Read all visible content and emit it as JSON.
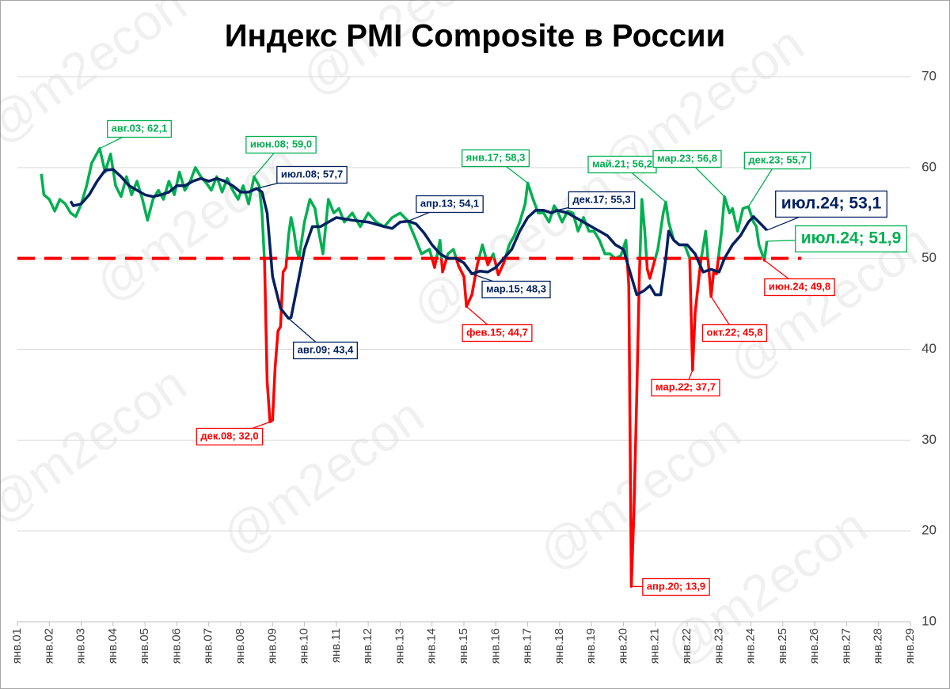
{
  "chart_data": {
    "type": "line",
    "title": "Индекс PMI Composite в России",
    "watermark": "@m2econ",
    "xlim": [
      2001,
      2029
    ],
    "xticks": [
      {
        "value": 2001,
        "label": "янв.01"
      },
      {
        "value": 2002,
        "label": "янв.02"
      },
      {
        "value": 2003,
        "label": "янв.03"
      },
      {
        "value": 2004,
        "label": "янв.04"
      },
      {
        "value": 2005,
        "label": "янв.05"
      },
      {
        "value": 2006,
        "label": "янв.06"
      },
      {
        "value": 2007,
        "label": "янв.07"
      },
      {
        "value": 2008,
        "label": "янв.08"
      },
      {
        "value": 2009,
        "label": "янв.09"
      },
      {
        "value": 2010,
        "label": "янв.10"
      },
      {
        "value": 2011,
        "label": "янв.11"
      },
      {
        "value": 2012,
        "label": "янв.12"
      },
      {
        "value": 2013,
        "label": "янв.13"
      },
      {
        "value": 2014,
        "label": "янв.14"
      },
      {
        "value": 2015,
        "label": "янв.15"
      },
      {
        "value": 2016,
        "label": "янв.16"
      },
      {
        "value": 2017,
        "label": "янв.17"
      },
      {
        "value": 2018,
        "label": "янв.18"
      },
      {
        "value": 2019,
        "label": "янв.19"
      },
      {
        "value": 2020,
        "label": "янв.20"
      },
      {
        "value": 2021,
        "label": "янв.21"
      },
      {
        "value": 2022,
        "label": "янв.22"
      },
      {
        "value": 2023,
        "label": "янв.23"
      },
      {
        "value": 2024,
        "label": "янв.24"
      },
      {
        "value": 2025,
        "label": "янв.25"
      },
      {
        "value": 2026,
        "label": "янв.26"
      },
      {
        "value": 2027,
        "label": "янв.27"
      },
      {
        "value": 2028,
        "label": "янв.28"
      },
      {
        "value": 2029,
        "label": "янв.29"
      }
    ],
    "ylim": [
      10,
      70
    ],
    "yticks": [
      10,
      20,
      30,
      40,
      50,
      60,
      70
    ],
    "y_axis_side": "right",
    "grid": true,
    "reference_line": {
      "value": 50,
      "x": [
        2001,
        2025.58
      ],
      "color": "#ff0000",
      "dashed": true
    },
    "series": [
      {
        "color": "#00b050",
        "below_reference_color": "#ff0000",
        "x": [
          2001.75,
          2001.83,
          2002.0,
          2002.17,
          2002.33,
          2002.5,
          2002.67,
          2002.83,
          2003.0,
          2003.17,
          2003.33,
          2003.58,
          2003.75,
          2003.92,
          2004.08,
          2004.25,
          2004.42,
          2004.58,
          2004.75,
          2004.92,
          2005.08,
          2005.25,
          2005.42,
          2005.58,
          2005.75,
          2005.92,
          2006.08,
          2006.25,
          2006.42,
          2006.58,
          2006.75,
          2006.92,
          2007.08,
          2007.25,
          2007.42,
          2007.58,
          2007.75,
          2007.92,
          2008.08,
          2008.25,
          2008.42,
          2008.58,
          2008.67,
          2008.75,
          2008.83,
          2008.92,
          2009.0,
          2009.08,
          2009.17,
          2009.25,
          2009.33,
          2009.42,
          2009.5,
          2009.58,
          2009.67,
          2009.75,
          2009.83,
          2010.0,
          2010.17,
          2010.33,
          2010.42,
          2010.58,
          2010.75,
          2010.92,
          2011.08,
          2011.25,
          2011.5,
          2011.75,
          2012.0,
          2012.25,
          2012.5,
          2012.75,
          2013.0,
          2013.25,
          2013.5,
          2013.67,
          2013.92,
          2014.08,
          2014.25,
          2014.33,
          2014.5,
          2014.67,
          2014.83,
          2015.0,
          2015.08,
          2015.25,
          2015.42,
          2015.58,
          2015.75,
          2015.92,
          2016.08,
          2016.25,
          2016.42,
          2016.58,
          2016.75,
          2016.92,
          2017.0,
          2017.17,
          2017.33,
          2017.5,
          2017.67,
          2017.83,
          2017.92,
          2018.08,
          2018.25,
          2018.42,
          2018.58,
          2018.75,
          2018.92,
          2019.08,
          2019.25,
          2019.42,
          2019.58,
          2019.75,
          2019.92,
          2020.08,
          2020.17,
          2020.25,
          2020.33,
          2020.42,
          2020.5,
          2020.58,
          2020.67,
          2020.75,
          2020.83,
          2020.92,
          2021.08,
          2021.25,
          2021.33,
          2021.42,
          2021.58,
          2021.75,
          2021.92,
          2022.08,
          2022.17,
          2022.25,
          2022.42,
          2022.58,
          2022.75,
          2022.83,
          2022.92,
          2023.08,
          2023.17,
          2023.33,
          2023.42,
          2023.58,
          2023.75,
          2023.92,
          2024.08,
          2024.17,
          2024.25,
          2024.42,
          2024.5
        ],
        "values": [
          59.3,
          57,
          56.5,
          55.2,
          56.5,
          56,
          55,
          54.6,
          56,
          58,
          60.5,
          62.1,
          59.5,
          61.5,
          58,
          56.8,
          59,
          57,
          58.5,
          56.5,
          54.2,
          56.5,
          57.5,
          56.5,
          58.5,
          57,
          59.5,
          57.5,
          58.5,
          60,
          59,
          58.3,
          57.5,
          59,
          57.3,
          58.8,
          57.5,
          56.5,
          58,
          56,
          59,
          58,
          55,
          49.5,
          36.5,
          32,
          32.2,
          38,
          42,
          42.5,
          48.5,
          49,
          52.5,
          54.5,
          53,
          51,
          50,
          54,
          56.5,
          55.5,
          53.5,
          50.5,
          56.5,
          55,
          55.5,
          54,
          55,
          53.5,
          55,
          54,
          53.5,
          54.5,
          55,
          54.1,
          52,
          50.5,
          51,
          49,
          52,
          48.5,
          50.5,
          51,
          49.2,
          48,
          44.7,
          46,
          49.3,
          51.5,
          49.3,
          50.5,
          48.2,
          49.5,
          51.5,
          52.5,
          54,
          56,
          58.3,
          56.5,
          55,
          55,
          54,
          55.8,
          55.3,
          54,
          55.2,
          55,
          53,
          54.5,
          53,
          53,
          52,
          50.5,
          50.5,
          50,
          50.3,
          52,
          47,
          13.9,
          22,
          35,
          48,
          56.5,
          53,
          48.8,
          47.8,
          49,
          51,
          55,
          56.2,
          54,
          52,
          51.5,
          51.5,
          50,
          37.7,
          44,
          49.5,
          53,
          45.8,
          48.5,
          48.3,
          53,
          56.8,
          55,
          55.5,
          53,
          55.5,
          55.7,
          54,
          53.5,
          51.5,
          49.8,
          51.9
        ]
      },
      {
        "color": "#002060",
        "x": [
          2002.67,
          2002.75,
          2003.0,
          2003.25,
          2003.5,
          2003.75,
          2004.0,
          2004.25,
          2004.5,
          2004.75,
          2005.0,
          2005.25,
          2005.5,
          2005.75,
          2006.0,
          2006.25,
          2006.5,
          2006.75,
          2007.0,
          2007.25,
          2007.5,
          2007.75,
          2008.0,
          2008.25,
          2008.5,
          2008.67,
          2008.83,
          2009.0,
          2009.25,
          2009.5,
          2009.58,
          2009.75,
          2010.0,
          2010.25,
          2010.5,
          2010.75,
          2011.0,
          2011.5,
          2012.0,
          2012.5,
          2012.75,
          2013.0,
          2013.25,
          2013.5,
          2013.75,
          2014.0,
          2014.25,
          2014.5,
          2014.75,
          2015.0,
          2015.25,
          2015.5,
          2015.75,
          2016.0,
          2016.25,
          2016.5,
          2016.75,
          2017.0,
          2017.25,
          2017.5,
          2017.75,
          2017.92,
          2018.25,
          2018.5,
          2018.75,
          2019.0,
          2019.25,
          2019.5,
          2019.75,
          2020.0,
          2020.25,
          2020.42,
          2020.67,
          2020.83,
          2021.0,
          2021.17,
          2021.33,
          2021.42,
          2021.58,
          2021.75,
          2022.0,
          2022.25,
          2022.5,
          2022.75,
          2023.0,
          2023.17,
          2023.42,
          2023.67,
          2023.92,
          2024.08,
          2024.25,
          2024.5
        ],
        "values": [
          56.3,
          55.8,
          56,
          57,
          58.5,
          59.7,
          59.8,
          59,
          58,
          57.5,
          57,
          56.8,
          57,
          57.3,
          58,
          58,
          58.5,
          58.8,
          58.5,
          58.8,
          58.5,
          58,
          57.3,
          57.3,
          57.7,
          57.3,
          55,
          48,
          44.5,
          43.4,
          43.5,
          46.5,
          51,
          53.5,
          53.5,
          54,
          54.5,
          54.2,
          54,
          53.5,
          53.3,
          54,
          54.1,
          53.8,
          52.8,
          51.5,
          50.5,
          50,
          50,
          49.5,
          48.3,
          48.6,
          48.5,
          49,
          50,
          51,
          53,
          54.5,
          55.3,
          55.3,
          55,
          55.3,
          55,
          54.5,
          54,
          53.5,
          53,
          52.5,
          51.5,
          51,
          48,
          46,
          46.5,
          47,
          46,
          46,
          50,
          53,
          52,
          51.5,
          51.5,
          50.5,
          48.5,
          48.8,
          48.5,
          50,
          51.5,
          52.5,
          54,
          54.6,
          54,
          53.1
        ]
      }
    ],
    "annotations": [
      {
        "text": "авг.03; 62,1",
        "x": 2003.58,
        "y": 62.1,
        "color": "#00b050"
      },
      {
        "text": "июн.08; 59,0",
        "x": 2008.42,
        "y": 59.0,
        "color": "#00b050"
      },
      {
        "text": "июл.08; 57,7",
        "x": 2008.5,
        "y": 57.7,
        "color": "#002060"
      },
      {
        "text": "авг.09; 43,4",
        "x": 2009.5,
        "y": 43.4,
        "color": "#002060"
      },
      {
        "text": "дек.08; 32,0",
        "x": 2008.92,
        "y": 32.0,
        "color": "#ff0000"
      },
      {
        "text": "апр.13; 54,1",
        "x": 2013.25,
        "y": 54.1,
        "color": "#002060"
      },
      {
        "text": "фев.15; 44,7",
        "x": 2015.08,
        "y": 44.7,
        "color": "#ff0000"
      },
      {
        "text": "мар.15; 48,3",
        "x": 2015.25,
        "y": 48.3,
        "color": "#002060"
      },
      {
        "text": "янв.17; 58,3",
        "x": 2017.0,
        "y": 58.3,
        "color": "#00b050"
      },
      {
        "text": "дек.17; 55,3",
        "x": 2017.92,
        "y": 55.3,
        "color": "#002060"
      },
      {
        "text": "май.21; 56,2",
        "x": 2021.33,
        "y": 56.2,
        "color": "#00b050"
      },
      {
        "text": "апр.20; 13,9",
        "x": 2020.25,
        "y": 13.9,
        "color": "#ff0000"
      },
      {
        "text": "мар.22; 37,7",
        "x": 2022.17,
        "y": 37.7,
        "color": "#ff0000"
      },
      {
        "text": "окт.22; 45,8",
        "x": 2022.75,
        "y": 45.8,
        "color": "#ff0000"
      },
      {
        "text": "мар.23; 56,8",
        "x": 2023.17,
        "y": 56.8,
        "color": "#00b050"
      },
      {
        "text": "дек.23; 55,7",
        "x": 2023.92,
        "y": 55.7,
        "color": "#00b050"
      },
      {
        "text": "июн.24; 49,8",
        "x": 2024.42,
        "y": 49.8,
        "color": "#ff0000"
      },
      {
        "text": "июл.24; 53,1",
        "x": 2024.5,
        "y": 53.1,
        "color": "#002060",
        "emphasis": true
      },
      {
        "text": "июл.24; 51,9",
        "x": 2024.5,
        "y": 51.9,
        "color": "#00b050",
        "emphasis": true
      }
    ]
  }
}
